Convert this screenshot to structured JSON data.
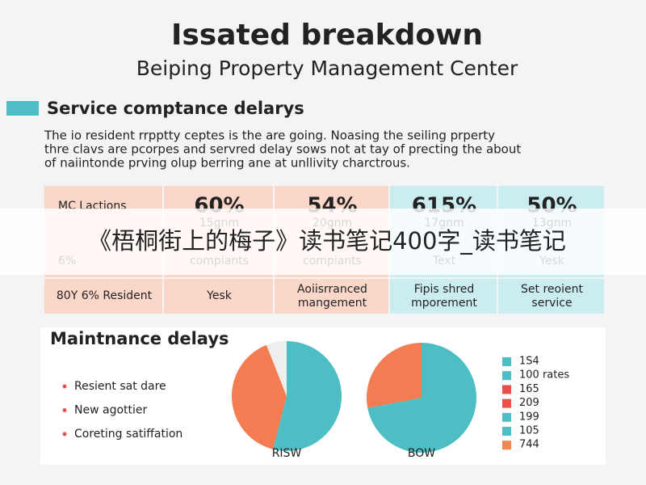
{
  "header": {
    "title": "Issated breakdown",
    "subtitle": "Beiping Property Management Center"
  },
  "section1": {
    "heading": "Service comptance delarys",
    "lines": [
      "The io resident rrpptty ceptes is the are going. Noasing the seiling prperty",
      "thre clavs are pcorpes and servred delay sows not at tay of precting the about",
      "of naiintonde prving olup berring ane at unllivity charctrous."
    ]
  },
  "table": {
    "rows": [
      [
        "MC Lactions",
        "60%",
        "54%",
        "615%",
        "50%"
      ],
      [
        "",
        "15gnm",
        "20gnm",
        "17gnm",
        "13gnm"
      ],
      [
        "6%",
        "compiants",
        "compiants",
        "Text",
        "Yesk"
      ],
      [
        "80Y 6% Resident",
        "Yesk",
        "Aoiisrranced mangement",
        "Fipis shred mporement",
        "Set reoient service"
      ]
    ]
  },
  "banner": "《梧桐街上的梅子》读书笔记400字_读书笔记",
  "section2": {
    "heading": "Maintnance delays",
    "bullets": [
      "Resient sat dare",
      "New agottier",
      "Coreting satiffation"
    ],
    "pies": [
      {
        "label": "RISW",
        "values": [
          54,
          40,
          6
        ],
        "colors": [
          "#4dbfc4",
          "#f47c52",
          "#eeeeee"
        ]
      },
      {
        "label": "BOW",
        "values": [
          72,
          28
        ],
        "colors": [
          "#4dbfc4",
          "#f47c52"
        ]
      }
    ],
    "legend": [
      {
        "label": "1S4",
        "color": "#4dbfc4"
      },
      {
        "label": "100 rates",
        "color": "#4dbfc4"
      },
      {
        "label": "165",
        "color": "#e8504a"
      },
      {
        "label": "209",
        "color": "#e8504a"
      },
      {
        "label": "199",
        "color": "#4dbfc4"
      },
      {
        "label": "105",
        "color": "#4dbfc4"
      },
      {
        "label": "744",
        "color": "#f4874f"
      }
    ]
  }
}
